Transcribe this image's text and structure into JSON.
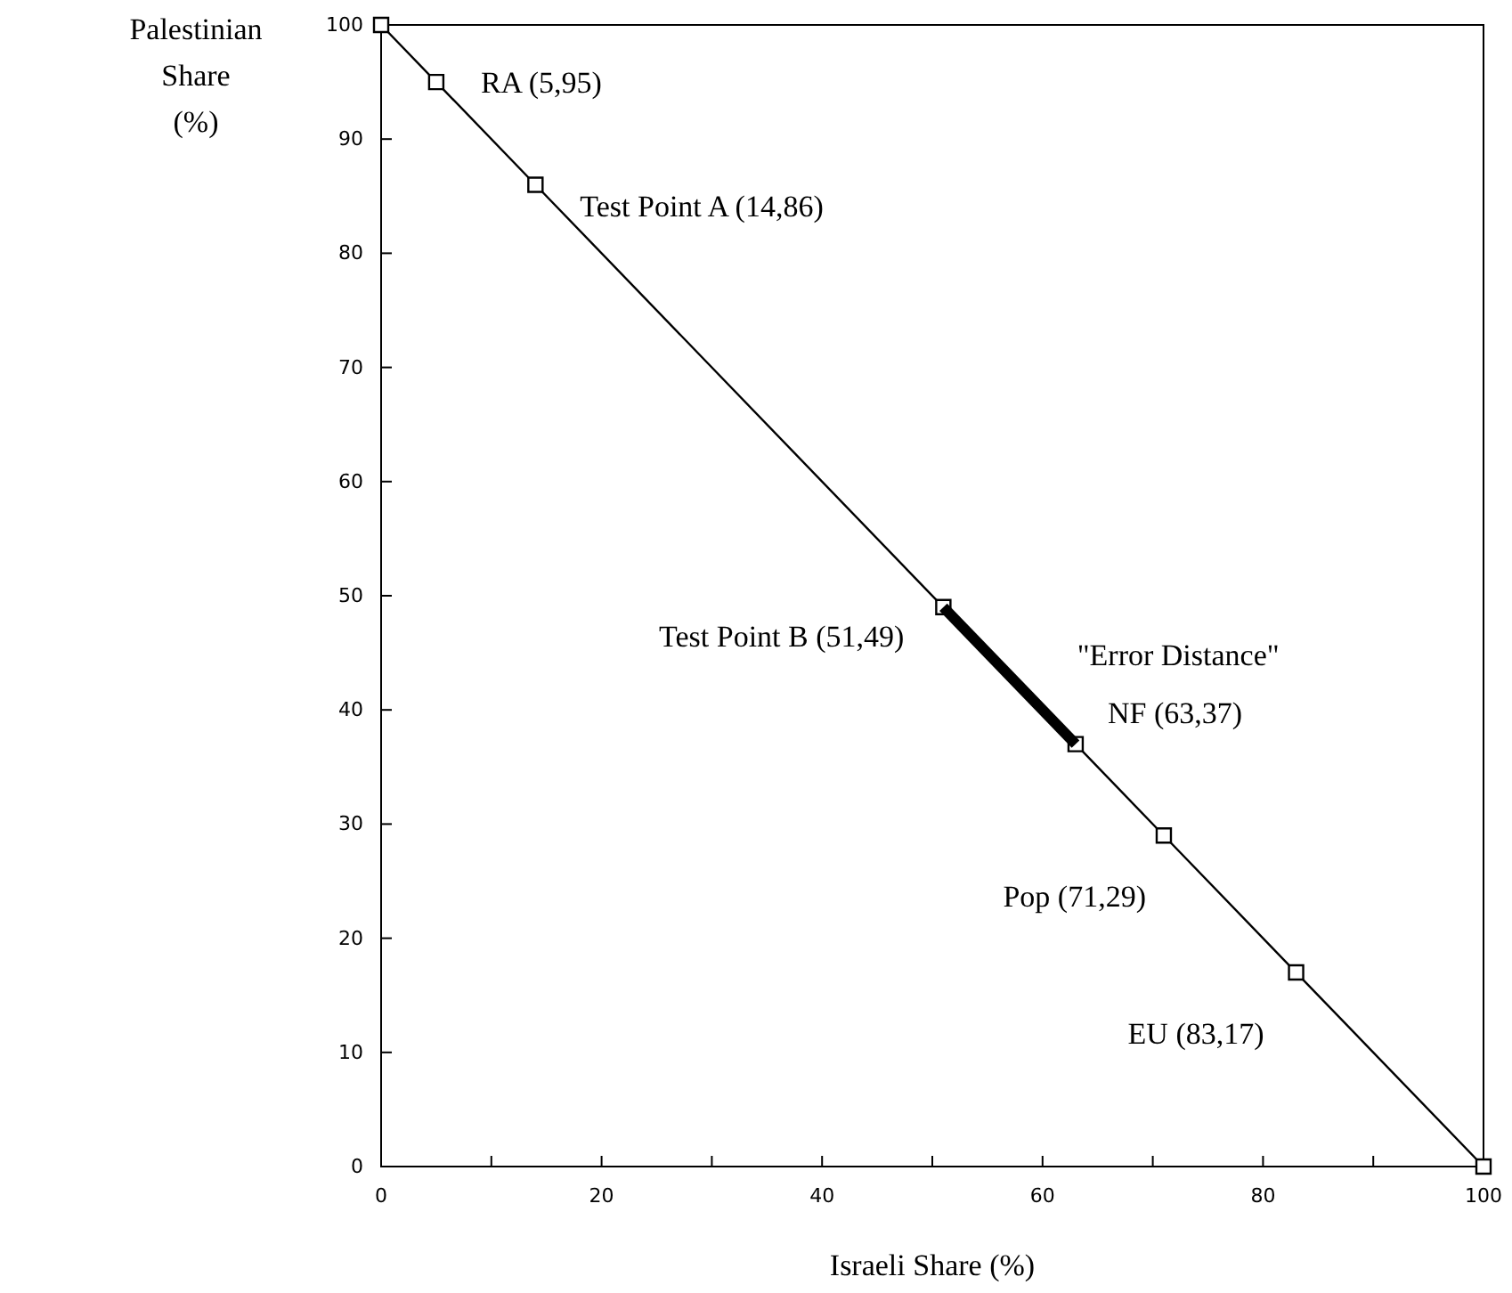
{
  "chart_data": {
    "type": "line",
    "xlabel": "Israeli Share (%)",
    "ylabel": "Palestinian Share (%)",
    "x": [
      0,
      5,
      14,
      51,
      63,
      71,
      83,
      100
    ],
    "series": [
      {
        "color": "#000000",
        "values": [
          100,
          95,
          86,
          49,
          37,
          29,
          17,
          0
        ],
        "marker": "square"
      },
      {
        "color": "#000000",
        "x": [
          51,
          63
        ],
        "values": [
          49,
          37
        ],
        "marker": "none"
      }
    ],
    "xlim": [
      0,
      100
    ],
    "ylim": [
      0,
      100
    ],
    "xticks": [
      0,
      {
        "value": 10,
        "label": null
      },
      20,
      {
        "value": 30,
        "label": null
      },
      40,
      {
        "value": 50,
        "label": null
      },
      60,
      {
        "value": 70,
        "label": null
      },
      80,
      {
        "value": 90,
        "label": null
      },
      100
    ],
    "yticks": [
      0,
      10,
      20,
      30,
      40,
      50,
      60,
      70,
      80,
      90,
      100
    ],
    "grid": false,
    "annotations": [
      {
        "text": "RA (5,95)",
        "x": 5,
        "y": 95
      },
      {
        "text": "Test Point A (14,86)",
        "x": 14,
        "y": 86
      },
      {
        "text": "Test Point B (51,49)",
        "x": 51,
        "y": 49
      },
      {
        "text": "\"Error Distance\"",
        "x": 57,
        "y": 43
      },
      {
        "text": "NF (63,37)",
        "x": 63,
        "y": 37
      },
      {
        "text": "Pop (71,29)",
        "x": 71,
        "y": 29
      },
      {
        "text": "EU (83,17)",
        "x": 83,
        "y": 17
      }
    ]
  }
}
